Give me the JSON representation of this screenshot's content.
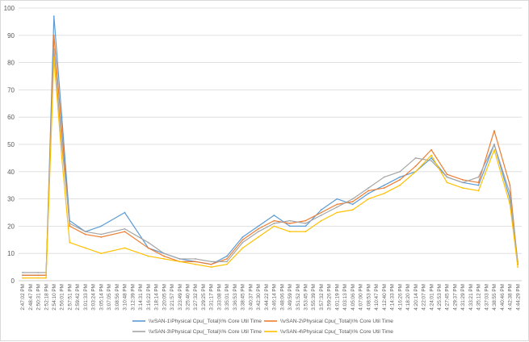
{
  "chart_data": {
    "type": "line",
    "title": "",
    "xlabel": "",
    "ylabel": "",
    "ylim": [
      0,
      100
    ],
    "yticks": [
      0,
      10,
      20,
      30,
      40,
      50,
      60,
      70,
      80,
      90,
      100
    ],
    "grid": "horizontal",
    "legend_position": "bottom",
    "x_tick_labels": [
      "2:47:02 PM",
      "2:48:47 PM",
      "2:50:31 PM",
      "2:52:18 PM",
      "2:54:10 PM",
      "2:56:01 PM",
      "2:57:51 PM",
      "2:59:42 PM",
      "3:01:33 PM",
      "3:03:24 PM",
      "3:05:14 PM",
      "3:07:05 PM",
      "3:08:56 PM",
      "3:10:48 PM",
      "3:12:39 PM",
      "3:14:31 PM",
      "3:16:22 PM",
      "3:18:14 PM",
      "3:20:05 PM",
      "3:21:57 PM",
      "3:23:49 PM",
      "3:25:40 PM",
      "3:27:32 PM",
      "3:29:25 PM",
      "3:31:17 PM",
      "3:33:08 PM",
      "3:35:01 PM",
      "3:36:53 PM",
      "3:38:45 PM",
      "3:40:37 PM",
      "3:42:30 PM",
      "3:44:22 PM",
      "3:46:14 PM",
      "3:48:06 PM",
      "3:49:59 PM",
      "3:51:52 PM",
      "3:53:45 PM",
      "3:55:39 PM",
      "3:57:32 PM",
      "3:59:26 PM",
      "4:01:19 PM",
      "4:03:13 PM",
      "4:05:06 PM",
      "4:07:00 PM",
      "4:08:53 PM",
      "4:10:47 PM",
      "4:12:40 PM",
      "4:14:33 PM",
      "4:16:26 PM",
      "4:18:20 PM",
      "4:20:14 PM",
      "4:22:07 PM",
      "4:24:01 PM",
      "4:25:53 PM",
      "4:27:45 PM",
      "4:29:37 PM",
      "4:31:29 PM",
      "4:33:21 PM",
      "4:35:12 PM",
      "4:37:03 PM",
      "4:38:55 PM",
      "4:40:46 PM",
      "4:42:38 PM",
      "4:44:29 PM"
    ],
    "x_sample_index": [
      0,
      2,
      3,
      4,
      5,
      6,
      8,
      10,
      13,
      16,
      18,
      20,
      22,
      24,
      26,
      28,
      30,
      32,
      34,
      36,
      38,
      40,
      42,
      44,
      46,
      48,
      50,
      52,
      54,
      56,
      58,
      60,
      62,
      63
    ],
    "series": [
      {
        "name": "\\\\vSAN-1\\Physical Cpu(_Total)\\% Core Util Time",
        "color": "#5b9bd5",
        "values": [
          2,
          2,
          2,
          97,
          60,
          22,
          18,
          20,
          25,
          12,
          10,
          8,
          7,
          6,
          9,
          16,
          20,
          24,
          20,
          20,
          26,
          30,
          28,
          32,
          35,
          38,
          40,
          45,
          38,
          36,
          35,
          50,
          30,
          6
        ]
      },
      {
        "name": "\\\\vSAN-2\\Physical Cpu(_Total)\\% Core Util Time",
        "color": "#ed7d31",
        "values": [
          2,
          2,
          2,
          90,
          55,
          20,
          17,
          16,
          18,
          12,
          9,
          7,
          7,
          6,
          8,
          15,
          19,
          22,
          21,
          22,
          25,
          28,
          29,
          33,
          34,
          37,
          42,
          48,
          39,
          37,
          36,
          55,
          35,
          6
        ]
      },
      {
        "name": "\\\\vSAN-3\\Physical Cpu(_Total)\\% Core Util Time",
        "color": "#a5a5a5",
        "values": [
          3,
          3,
          3,
          85,
          50,
          21,
          18,
          17,
          19,
          14,
          10,
          8,
          8,
          7,
          7,
          14,
          18,
          21,
          22,
          21,
          24,
          27,
          30,
          34,
          38,
          40,
          45,
          44,
          38,
          36,
          38,
          50,
          32,
          7
        ]
      },
      {
        "name": "\\\\vSAN-4\\Physical Cpu(_Total)\\% Core Util Time",
        "color": "#ffc000",
        "values": [
          1,
          1,
          1,
          82,
          45,
          14,
          12,
          10,
          12,
          9,
          8,
          7,
          6,
          5,
          6,
          12,
          16,
          20,
          18,
          18,
          22,
          25,
          26,
          30,
          32,
          35,
          40,
          46,
          36,
          34,
          33,
          48,
          28,
          5
        ]
      }
    ]
  }
}
